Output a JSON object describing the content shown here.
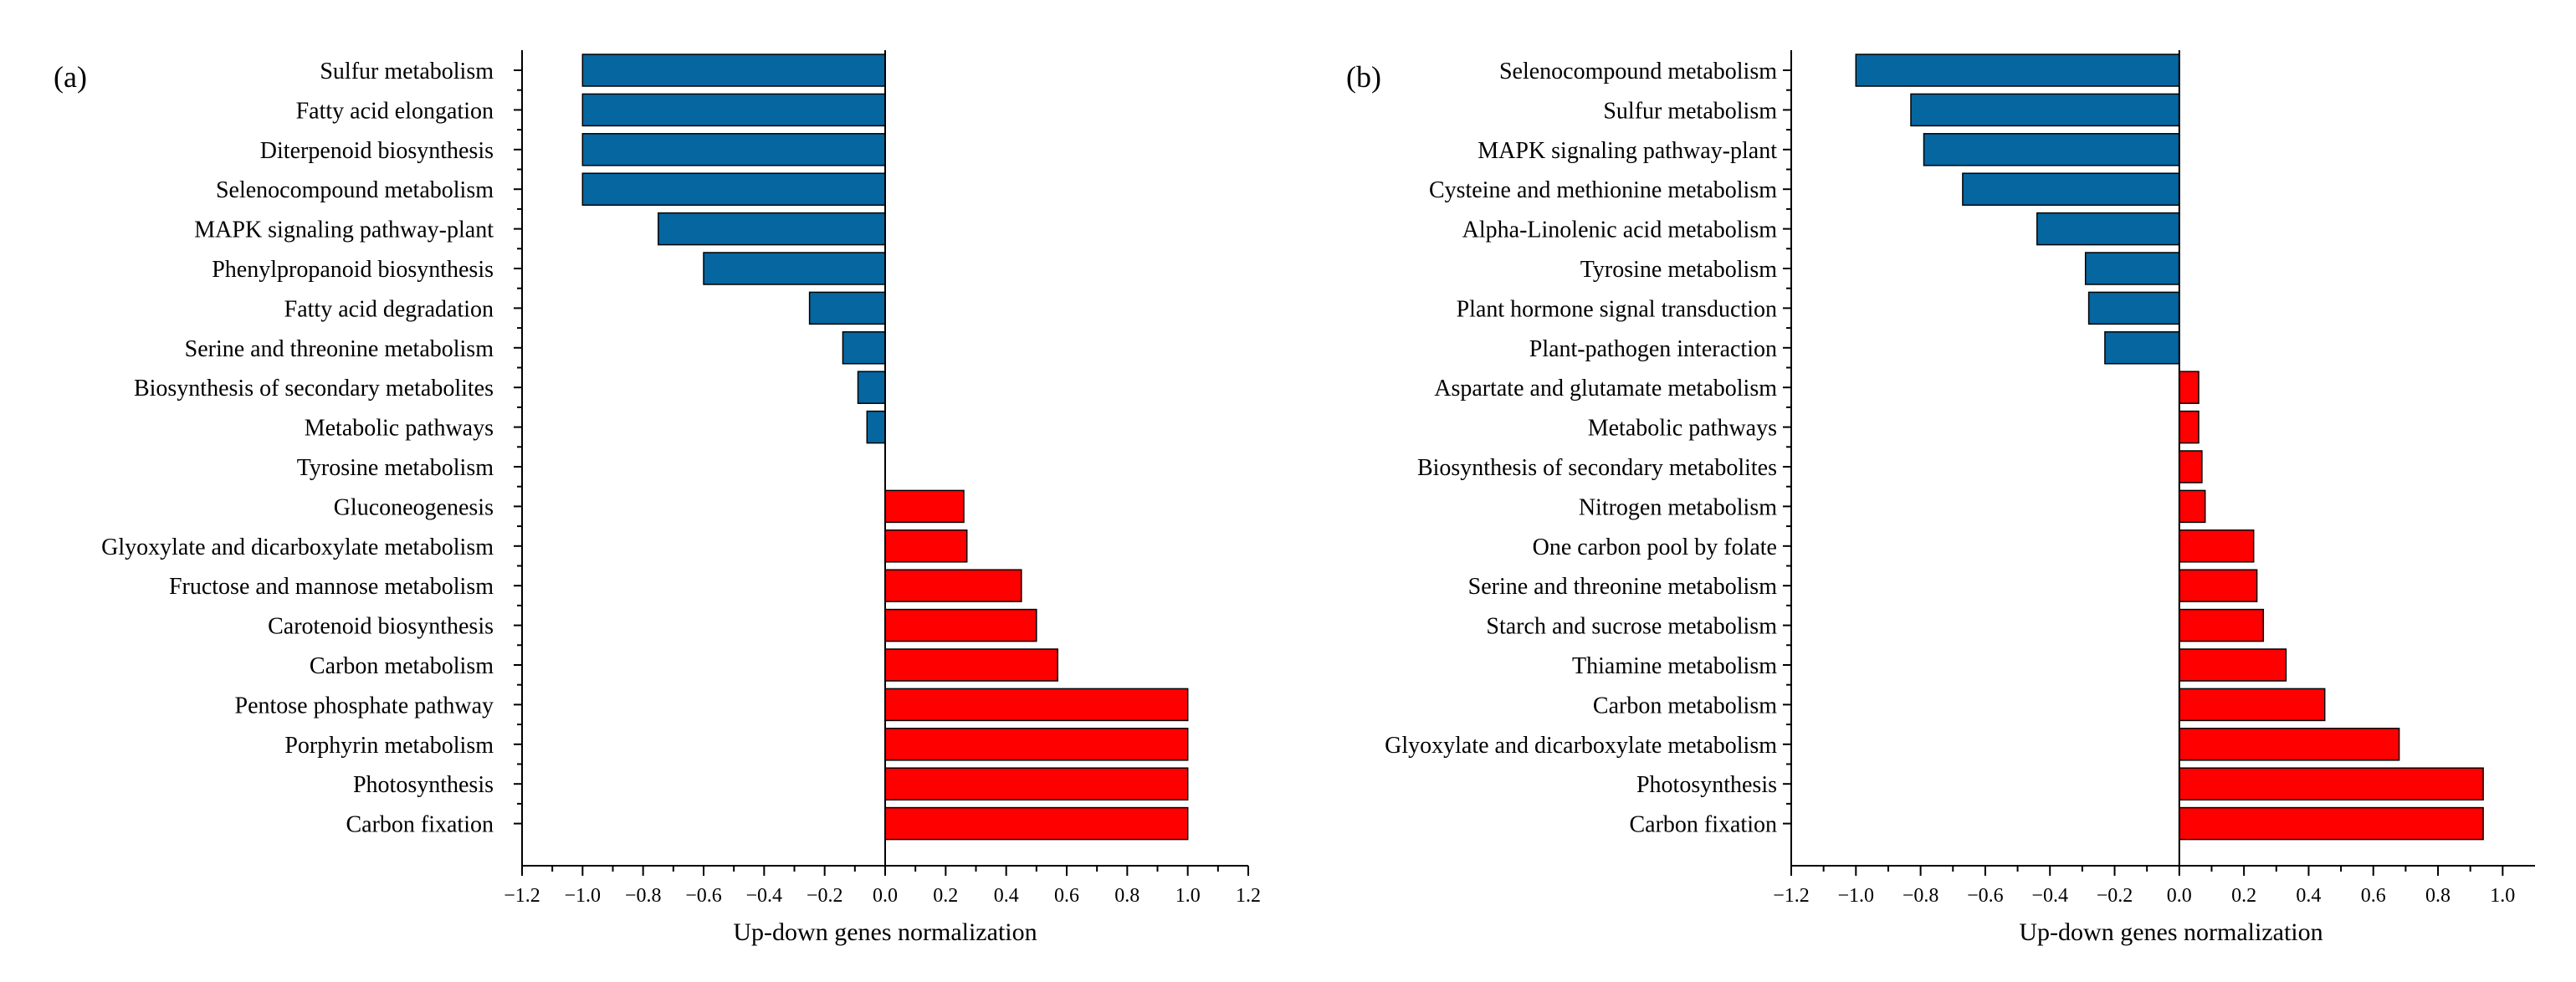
{
  "figure": {
    "colors": {
      "negative": "#0566a0",
      "positive": "#ff0000",
      "edge": "#000000",
      "axis": "#000000"
    }
  },
  "chart_data": [
    {
      "type": "bar",
      "orientation": "horizontal",
      "panel_label": "(a)",
      "xlabel": "Up-down genes normalization",
      "xlim": [
        -1.2,
        1.2
      ],
      "xticks": [
        "−1.2",
        "−1.0",
        "−0.8",
        "−0.6",
        "−0.4",
        "−0.2",
        "0.0",
        "0.2",
        "0.4",
        "0.6",
        "0.8",
        "1.0",
        "1.2"
      ],
      "xtick_values": [
        -1.2,
        -1.0,
        -0.8,
        -0.6,
        -0.4,
        -0.2,
        0.0,
        0.2,
        0.4,
        0.6,
        0.8,
        1.0,
        1.2
      ],
      "categories": [
        "Sulfur metabolism",
        "Fatty acid elongation",
        "Diterpenoid biosynthesis",
        "Selenocompound metabolism",
        "MAPK signaling pathway-plant",
        "Phenylpropanoid biosynthesis",
        "Fatty acid degradation",
        "Serine and threonine metabolism",
        "Biosynthesis of secondary metabolites",
        "Metabolic pathways",
        "Tyrosine metabolism",
        "Gluconeogenesis",
        "Glyoxylate and dicarboxylate metabolism",
        "Fructose and mannose metabolism",
        "Carotenoid biosynthesis",
        "Carbon metabolism",
        "Pentose phosphate pathway",
        "Porphyrin metabolism",
        "Photosynthesis",
        "Carbon fixation"
      ],
      "values": [
        -1.0,
        -1.0,
        -1.0,
        -1.0,
        -0.75,
        -0.6,
        -0.25,
        -0.14,
        -0.09,
        -0.06,
        0.0,
        0.26,
        0.27,
        0.45,
        0.5,
        0.57,
        1.0,
        1.0,
        1.0,
        1.0
      ],
      "grid": false,
      "legend": "none"
    },
    {
      "type": "bar",
      "orientation": "horizontal",
      "panel_label": "(b)",
      "xlabel": "Up-down genes normalization",
      "xlim": [
        -1.2,
        1.1
      ],
      "xticks": [
        "−1.2",
        "−1.0",
        "−0.8",
        "−0.6",
        "−0.4",
        "−0.2",
        "0.0",
        "0.2",
        "0.4",
        "0.6",
        "0.8",
        "1.0"
      ],
      "xtick_values": [
        -1.2,
        -1.0,
        -0.8,
        -0.6,
        -0.4,
        -0.2,
        0.0,
        0.2,
        0.4,
        0.6,
        0.8,
        1.0
      ],
      "categories": [
        "Selenocompound metabolism",
        "Sulfur metabolism",
        "MAPK signaling pathway-plant",
        "Cysteine and methionine metabolism",
        "Alpha-Linolenic acid metabolism",
        "Tyrosine metabolism",
        "Plant hormone signal transduction",
        "Plant-pathogen interaction",
        "Aspartate and glutamate metabolism",
        "Metabolic pathways",
        "Biosynthesis of secondary metabolites",
        "Nitrogen metabolism",
        "One carbon pool by folate",
        "Serine and threonine metabolism",
        "Starch and sucrose metabolism",
        "Thiamine metabolism",
        "Carbon metabolism",
        "Glyoxylate and dicarboxylate metabolism",
        "Photosynthesis",
        "Carbon fixation"
      ],
      "values": [
        -1.0,
        -0.83,
        -0.79,
        -0.67,
        -0.44,
        -0.29,
        -0.28,
        -0.23,
        0.06,
        0.06,
        0.07,
        0.08,
        0.23,
        0.24,
        0.26,
        0.33,
        0.45,
        0.68,
        0.94,
        0.94
      ],
      "grid": false,
      "legend": "none"
    }
  ]
}
